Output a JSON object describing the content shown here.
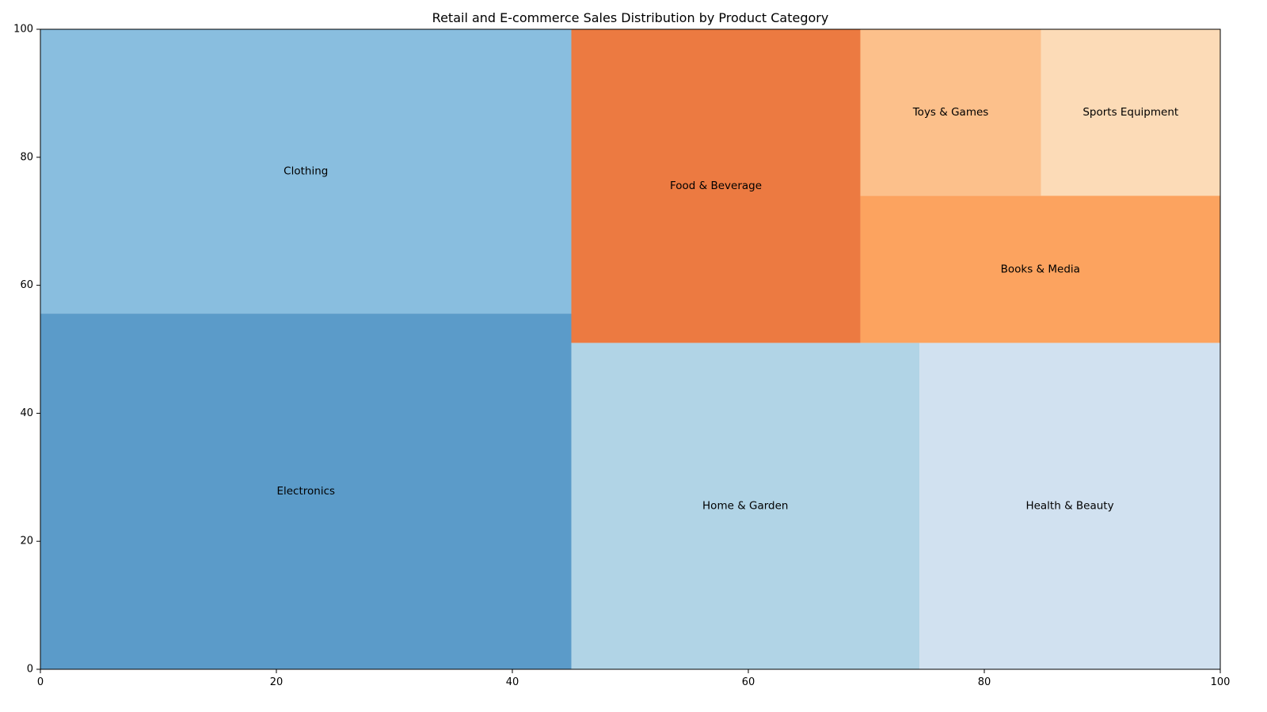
{
  "chart_data": {
    "type": "treemap",
    "title": "Retail and E-commerce Sales Distribution by Product Category",
    "xlabel": "",
    "ylabel": "",
    "xlim": [
      0,
      100
    ],
    "ylim": [
      0,
      100
    ],
    "xticks": [
      "0",
      "20",
      "40",
      "60",
      "80",
      "100"
    ],
    "yticks": [
      "0",
      "20",
      "40",
      "60",
      "80",
      "100"
    ],
    "grid": false,
    "legend": "none",
    "rects": [
      {
        "label": "Electronics",
        "x": 0,
        "y": 0,
        "dx": 45,
        "dy": 55.6,
        "color": "#5b9bc9"
      },
      {
        "label": "Clothing",
        "x": 0,
        "y": 55.6,
        "dx": 45,
        "dy": 44.4,
        "color": "#89bedf"
      },
      {
        "label": "Home & Garden",
        "x": 45,
        "y": 0,
        "dx": 29.5,
        "dy": 51,
        "color": "#b1d4e6"
      },
      {
        "label": "Health & Beauty",
        "x": 74.5,
        "y": 0,
        "dx": 25.5,
        "dy": 51,
        "color": "#d1e1f0"
      },
      {
        "label": "Food & Beverage",
        "x": 45,
        "y": 51,
        "dx": 24.5,
        "dy": 49,
        "color": "#ec7a41"
      },
      {
        "label": "Books & Media",
        "x": 69.5,
        "y": 51,
        "dx": 30.5,
        "dy": 23,
        "color": "#fca35f"
      },
      {
        "label": "Toys & Games",
        "x": 69.5,
        "y": 74,
        "dx": 15.3,
        "dy": 26,
        "color": "#fcc08b"
      },
      {
        "label": "Sports Equipment",
        "x": 84.8,
        "y": 74,
        "dx": 15.2,
        "dy": 26,
        "color": "#fcdbb7"
      }
    ]
  }
}
